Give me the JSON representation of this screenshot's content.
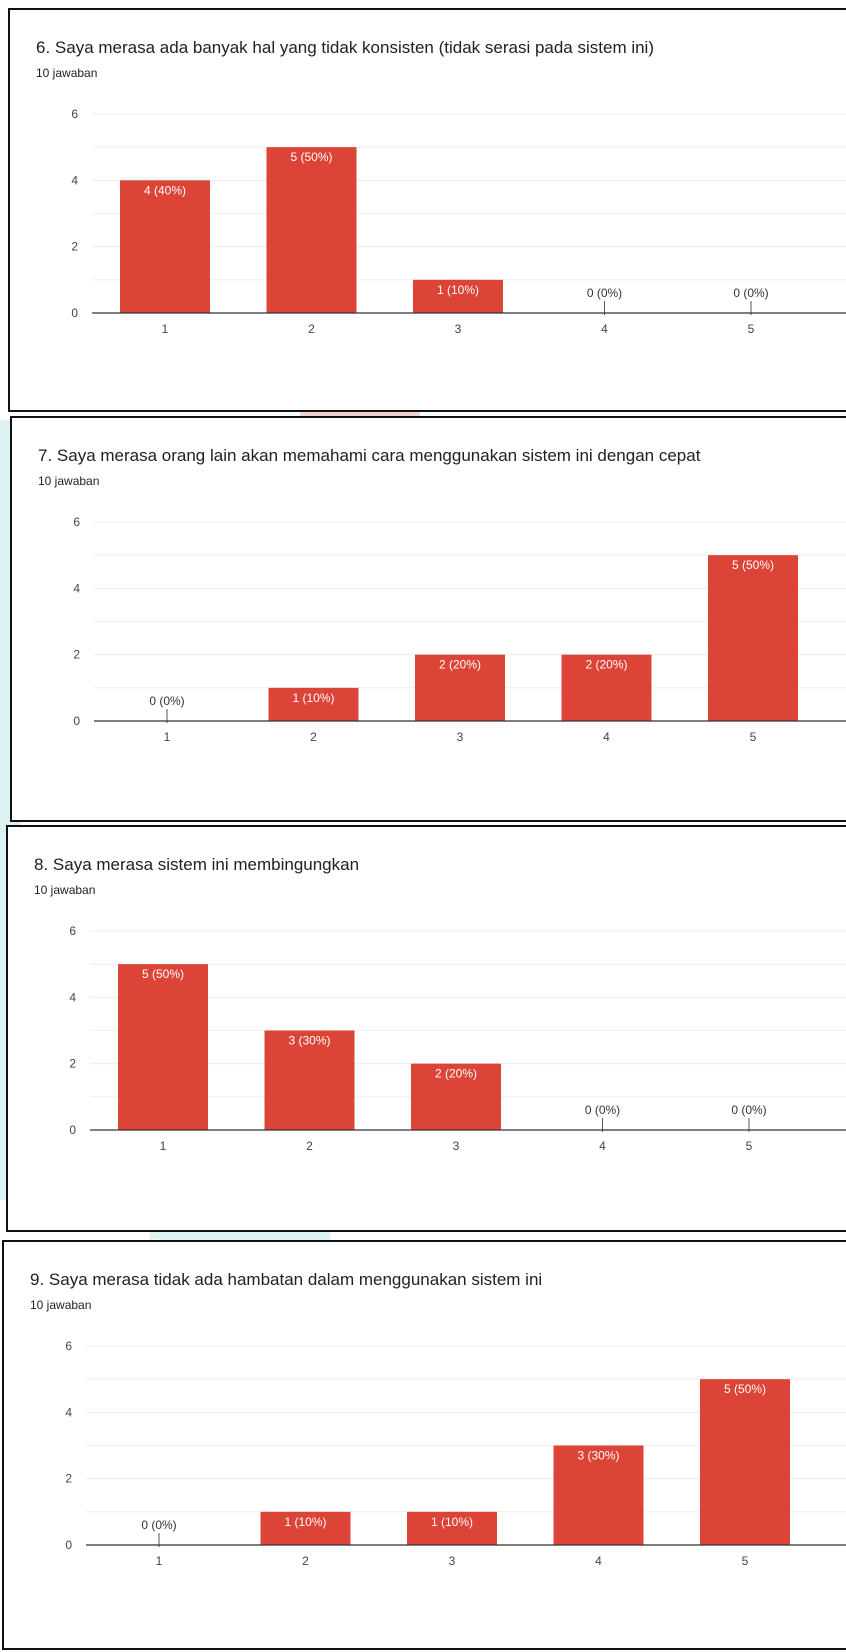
{
  "colors": {
    "bar": "#db4437",
    "grid": "#ebebeb",
    "axis": "#333333",
    "tick_text": "#444444"
  },
  "chart_data": [
    {
      "type": "bar",
      "title": "6. Saya merasa ada banyak hal yang tidak konsisten (tidak serasi pada sistem ini)",
      "subtitle": "10 jawaban",
      "categories": [
        "1",
        "2",
        "3",
        "4",
        "5"
      ],
      "values": [
        4,
        5,
        1,
        0,
        0
      ],
      "data_labels": [
        "4 (40%)",
        "5 (50%)",
        "1 (10%)",
        "0 (0%)",
        "0 (0%)"
      ],
      "yticks": [
        "0",
        "2",
        "4",
        "6"
      ],
      "ylim": [
        0,
        6
      ],
      "grid": true
    },
    {
      "type": "bar",
      "title": "7. Saya merasa orang lain akan memahami cara menggunakan sistem ini dengan cepat",
      "subtitle": "10 jawaban",
      "categories": [
        "1",
        "2",
        "3",
        "4",
        "5"
      ],
      "values": [
        0,
        1,
        2,
        2,
        5
      ],
      "data_labels": [
        "0 (0%)",
        "1 (10%)",
        "2 (20%)",
        "2 (20%)",
        "5 (50%)"
      ],
      "yticks": [
        "0",
        "2",
        "4",
        "6"
      ],
      "ylim": [
        0,
        6
      ],
      "grid": true
    },
    {
      "type": "bar",
      "title": "8. Saya merasa sistem ini membingungkan",
      "subtitle": "10 jawaban",
      "categories": [
        "1",
        "2",
        "3",
        "4",
        "5"
      ],
      "values": [
        5,
        3,
        2,
        0,
        0
      ],
      "data_labels": [
        "5 (50%)",
        "3 (30%)",
        "2 (20%)",
        "0 (0%)",
        "0 (0%)"
      ],
      "yticks": [
        "0",
        "2",
        "4",
        "6"
      ],
      "ylim": [
        0,
        6
      ],
      "grid": true
    },
    {
      "type": "bar",
      "title": "9. Saya merasa tidak ada hambatan dalam menggunakan sistem ini",
      "subtitle": "10 jawaban",
      "categories": [
        "1",
        "2",
        "3",
        "4",
        "5"
      ],
      "values": [
        0,
        1,
        1,
        3,
        5
      ],
      "data_labels": [
        "0 (0%)",
        "1 (10%)",
        "1 (10%)",
        "3 (30%)",
        "5 (50%)"
      ],
      "yticks": [
        "0",
        "2",
        "4",
        "6"
      ],
      "ylim": [
        0,
        6
      ],
      "grid": true
    }
  ]
}
